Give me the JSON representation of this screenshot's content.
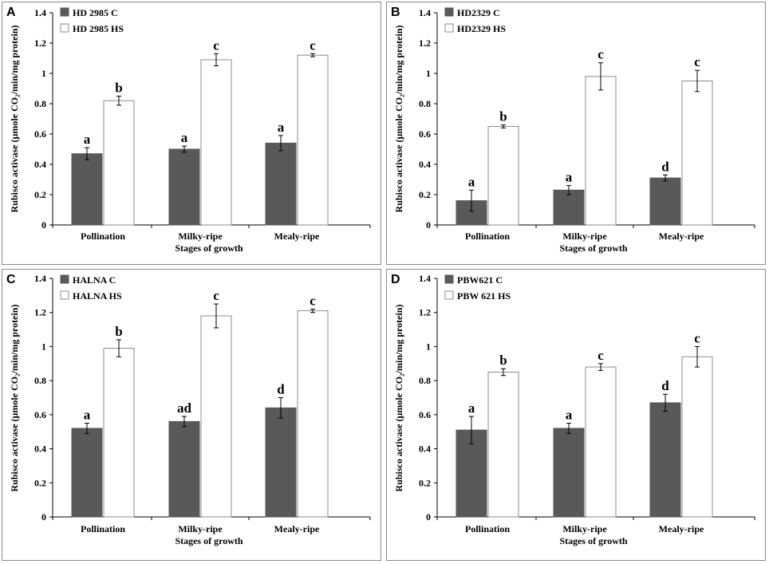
{
  "colors": {
    "control": "#595959",
    "heat_stress": "#ffffff",
    "bar_outline": "#8c8c8c",
    "frame": "#8a8a8a"
  },
  "chart_data": [
    {
      "panel": "A",
      "type": "bar",
      "categories": [
        "Pollination",
        "Milky-ripe",
        "Mealy-ripe"
      ],
      "xlabel": "Stages of growth",
      "ylabel": "Rubisco activase (µmole CO₂/min/mg protein)",
      "ylim": [
        0,
        1.4
      ],
      "ticks": [
        "0",
        "0.2",
        "0.4",
        "0.6",
        "0.8",
        "1",
        "1.2",
        "1.4"
      ],
      "legend_position": "top-left",
      "series": [
        {
          "name": "HD 2985 C",
          "values": [
            0.47,
            0.5,
            0.54
          ],
          "errors": [
            0.04,
            0.02,
            0.05
          ],
          "letters": [
            "a",
            "a",
            "a"
          ]
        },
        {
          "name": "HD 2985 HS",
          "values": [
            0.82,
            1.09,
            1.12
          ],
          "errors": [
            0.03,
            0.04,
            0.01
          ],
          "letters": [
            "b",
            "c",
            "c"
          ]
        }
      ]
    },
    {
      "panel": "B",
      "type": "bar",
      "categories": [
        "Pollination",
        "Milky-ripe",
        "Mealy-ripe"
      ],
      "xlabel": "Stages of growth",
      "ylabel": "Rubisco activase (µmole CO₂/min/mg protein)",
      "ylim": [
        0,
        1.4
      ],
      "ticks": [
        "0",
        "0.2",
        "0.4",
        "0.6",
        "0.8",
        "1",
        "1.2",
        "1.4"
      ],
      "legend_position": "top-left",
      "series": [
        {
          "name": "HD2329 C",
          "values": [
            0.16,
            0.23,
            0.31
          ],
          "errors": [
            0.07,
            0.03,
            0.02
          ],
          "letters": [
            "a",
            "a",
            "d"
          ]
        },
        {
          "name": "HD2329 HS",
          "values": [
            0.65,
            0.98,
            0.95
          ],
          "errors": [
            0.01,
            0.09,
            0.07
          ],
          "letters": [
            "b",
            "c",
            "c"
          ]
        }
      ]
    },
    {
      "panel": "C",
      "type": "bar",
      "categories": [
        "Pollination",
        "Milky-ripe",
        "Mealy-ripe"
      ],
      "xlabel": "Stages of growth",
      "ylabel": "Rubisco activase (µmole CO₂/min/mg protein)",
      "ylim": [
        0,
        1.4
      ],
      "ticks": [
        "0",
        "0.2",
        "0.4",
        "0.6",
        "0.8",
        "1",
        "1.2",
        "1.4"
      ],
      "legend_position": "top-left",
      "series": [
        {
          "name": "HALNA C",
          "values": [
            0.52,
            0.56,
            0.64
          ],
          "errors": [
            0.03,
            0.03,
            0.06
          ],
          "letters": [
            "a",
            "ad",
            "d"
          ]
        },
        {
          "name": "HALNA HS",
          "values": [
            0.99,
            1.18,
            1.21
          ],
          "errors": [
            0.05,
            0.07,
            0.01
          ],
          "letters": [
            "b",
            "c",
            "c"
          ]
        }
      ]
    },
    {
      "panel": "D",
      "type": "bar",
      "categories": [
        "Pollination",
        "Milky-ripe",
        "Mealy-ripe"
      ],
      "xlabel": "Stages of growth",
      "ylabel": "Rubisco activase (µmole CO₂/min/mg protein)",
      "ylim": [
        0,
        1.4
      ],
      "ticks": [
        "0",
        "0.2",
        "0.4",
        "0.6",
        "0.8",
        "1",
        "1.2",
        "1.4"
      ],
      "legend_position": "top-left",
      "series": [
        {
          "name": "PBW621 C",
          "values": [
            0.51,
            0.52,
            0.67
          ],
          "errors": [
            0.08,
            0.03,
            0.05
          ],
          "letters": [
            "a",
            "a",
            "d"
          ]
        },
        {
          "name": "PBW 621 HS",
          "values": [
            0.85,
            0.88,
            0.94
          ],
          "errors": [
            0.02,
            0.02,
            0.06
          ],
          "letters": [
            "b",
            "c",
            "c"
          ]
        }
      ]
    }
  ]
}
